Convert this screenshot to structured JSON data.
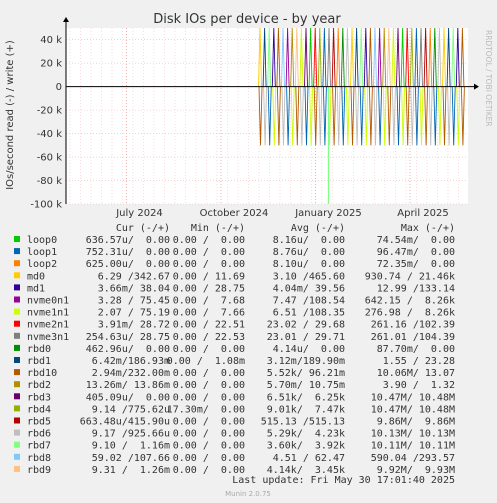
{
  "chart_data": {
    "type": "line",
    "title": "Disk IOs per device - by year",
    "ylabel": "IOs/second read (-) / write (+)",
    "side_label": "RRDTOOL / TOBI OETIKER",
    "x_ticks": [
      "July 2024",
      "October 2024",
      "January 2025",
      "April 2025"
    ],
    "y_ticks": [
      "40 k",
      "20 k",
      "0",
      "-20 k",
      "-40 k",
      "-60 k",
      "-80 k",
      "-100 k"
    ],
    "y_tick_values": [
      40000,
      20000,
      0,
      -20000,
      -40000,
      -60000,
      -80000,
      -100000
    ],
    "ylim": [
      -100000,
      50000
    ],
    "grid": true,
    "activity": {
      "start_month": "2024-11",
      "write_peak": 50000,
      "read_peak": -50000,
      "outlier_read": -100000
    },
    "columns": [
      "Cur (-/+)",
      "Min (-/+)",
      "Avg (-/+)",
      "Max (-/+)"
    ],
    "series": [
      {
        "name": "loop0",
        "color": "#00cc00",
        "cur": "636.57u/  0.00",
        "min": "0.00 /  0.00",
        "avg": "8.16u/  0.00",
        "max": "74.54m/  0.00"
      },
      {
        "name": "loop1",
        "color": "#0066b3",
        "cur": "752.31u/  0.00",
        "min": "0.00 /  0.00",
        "avg": "8.76u/  0.00",
        "max": "96.47m/  0.00"
      },
      {
        "name": "loop2",
        "color": "#ff8000",
        "cur": "625.00u/  0.00",
        "min": "0.00 /  0.00",
        "avg": "8.10u/  0.00",
        "max": "72.35m/  0.00"
      },
      {
        "name": "md0",
        "color": "#ffcc00",
        "cur": "6.29 /342.67",
        "min": "0.00 / 11.69",
        "avg": "3.10 /465.60",
        "max": "930.74 / 21.46k"
      },
      {
        "name": "md1",
        "color": "#330099",
        "cur": "3.66m/ 38.04",
        "min": "0.00 / 28.75",
        "avg": "4.04m/ 39.56",
        "max": "12.99 /133.14"
      },
      {
        "name": "nvme0n1",
        "color": "#990099",
        "cur": "3.28 / 75.45",
        "min": "0.00 /  7.68",
        "avg": "7.47 /108.54",
        "max": "642.15 /  8.26k"
      },
      {
        "name": "nvme1n1",
        "color": "#ccff00",
        "cur": "2.07 / 75.19",
        "min": "0.00 /  7.66",
        "avg": "6.51 /108.35",
        "max": "276.98 /  8.26k"
      },
      {
        "name": "nvme2n1",
        "color": "#ff0000",
        "cur": "3.91m/ 28.72",
        "min": "0.00 / 22.51",
        "avg": "23.02 / 29.68",
        "max": "261.16 /102.39"
      },
      {
        "name": "nvme3n1",
        "color": "#808080",
        "cur": "254.63u/ 28.75",
        "min": "0.00 / 22.53",
        "avg": "23.01 / 29.71",
        "max": "261.01 /104.39"
      },
      {
        "name": "rbd0",
        "color": "#008f00",
        "cur": "462.96u/  0.00",
        "min": "0.00 /  0.00",
        "avg": "4.14u/  0.00",
        "max": "87.70m/  0.00"
      },
      {
        "name": "rbd1",
        "color": "#00487d",
        "cur": "6.42m/186.93m",
        "min": "0.00 /  1.08m",
        "avg": "3.12m/189.90m",
        "max": "1.55 / 23.28"
      },
      {
        "name": "rbd10",
        "color": "#b35a00",
        "cur": "2.94m/232.00m",
        "min": "0.00 /  0.00",
        "avg": "5.52k/ 96.21m",
        "max": "10.06M/ 13.07"
      },
      {
        "name": "rbd2",
        "color": "#b38f00",
        "cur": "13.26m/ 13.86m",
        "min": "0.00 /  0.00",
        "avg": "5.70m/ 10.75m",
        "max": "3.90 /  1.32"
      },
      {
        "name": "rbd3",
        "color": "#6b006b",
        "cur": "405.09u/  0.00",
        "min": "0.00 /  0.00",
        "avg": "6.51k/  6.25k",
        "max": "10.47M/ 10.48M"
      },
      {
        "name": "rbd4",
        "color": "#8fb300",
        "cur": "9.14 /775.62u",
        "min": "17.30m/  0.00",
        "avg": "9.01k/  7.47k",
        "max": "10.47M/ 10.48M"
      },
      {
        "name": "rbd5",
        "color": "#b30000",
        "cur": "663.48u/415.90u",
        "min": "0.00 /  0.00",
        "avg": "515.13 /515.13",
        "max": "9.86M/  9.86M"
      },
      {
        "name": "rbd6",
        "color": "#bebebe",
        "cur": "9.17 /925.66u",
        "min": "0.00 /  0.00",
        "avg": "5.29k/  4.23k",
        "max": "10.13M/ 10.13M"
      },
      {
        "name": "rbd7",
        "color": "#80ff80",
        "cur": "9.10 /  1.16m",
        "min": "0.00 /  0.00",
        "avg": "3.60k/  3.92k",
        "max": "10.11M/ 10.11M"
      },
      {
        "name": "rbd8",
        "color": "#80c9ff",
        "cur": "59.02 /107.66",
        "min": "0.00 /  0.00",
        "avg": "4.51 / 62.47",
        "max": "590.04 /293.57"
      },
      {
        "name": "rbd9",
        "color": "#ffc080",
        "cur": "9.31 /  1.26m",
        "min": "0.00 /  0.00",
        "avg": "4.14k/  3.45k",
        "max": "9.92M/  9.93M"
      }
    ],
    "last_update": "Last update: Fri May 30 17:01:40 2025",
    "footer": "Munin 2.0.75"
  }
}
